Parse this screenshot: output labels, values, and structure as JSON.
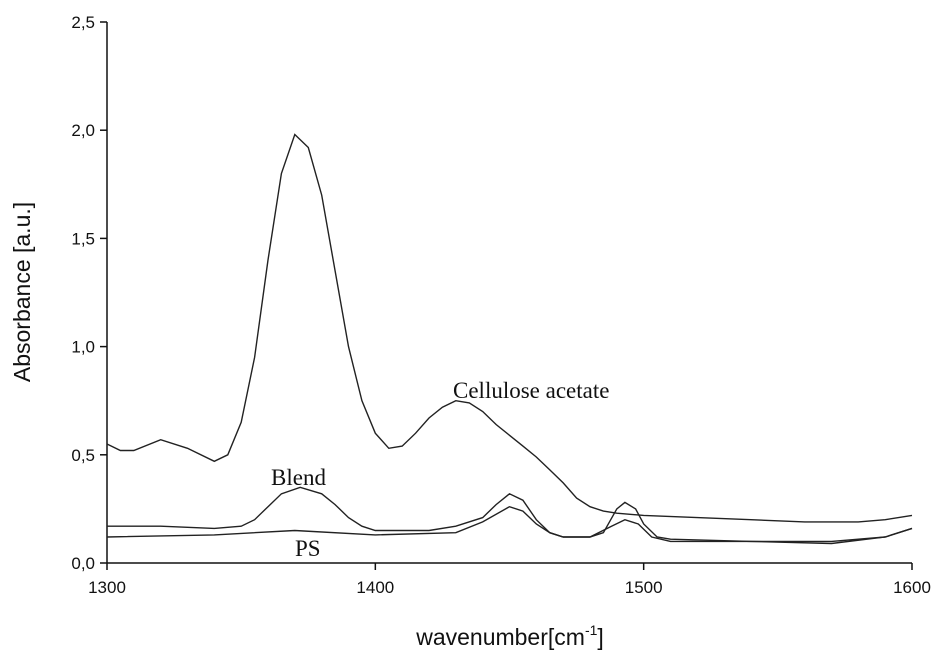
{
  "chart_data": {
    "type": "line",
    "x_label": {
      "text": "wavenumber[cm",
      "superscript": "-1",
      "suffix": "]"
    },
    "y_label": "Absorbance [a.u.]",
    "xlim": [
      1300,
      1600
    ],
    "xticks": [
      1300,
      1400,
      1500,
      1600
    ],
    "ylim": [
      0,
      2.5
    ],
    "yticks": [
      {
        "value": 0,
        "label": "0,0"
      },
      {
        "value": 0.5,
        "label": "0,5"
      },
      {
        "value": 1,
        "label": "1,0"
      },
      {
        "value": 1.5,
        "label": "1,5"
      },
      {
        "value": 2,
        "label": "2,0"
      },
      {
        "value": 2.5,
        "label": "2,5"
      }
    ],
    "series": [
      {
        "name": "Cellulose acetate",
        "color": "#222222",
        "x": [
          1300,
          1305,
          1310,
          1320,
          1330,
          1340,
          1345,
          1350,
          1355,
          1360,
          1365,
          1370,
          1375,
          1380,
          1385,
          1390,
          1395,
          1400,
          1405,
          1410,
          1415,
          1420,
          1425,
          1430,
          1435,
          1440,
          1445,
          1450,
          1455,
          1460,
          1465,
          1470,
          1475,
          1480,
          1485,
          1490,
          1500,
          1520,
          1540,
          1560,
          1580,
          1590,
          1600
        ],
        "values": [
          0.55,
          0.52,
          0.52,
          0.57,
          0.53,
          0.47,
          0.5,
          0.65,
          0.95,
          1.4,
          1.8,
          1.98,
          1.92,
          1.7,
          1.35,
          1.0,
          0.75,
          0.6,
          0.53,
          0.54,
          0.6,
          0.67,
          0.72,
          0.75,
          0.74,
          0.7,
          0.64,
          0.59,
          0.54,
          0.49,
          0.43,
          0.37,
          0.3,
          0.26,
          0.24,
          0.23,
          0.22,
          0.21,
          0.2,
          0.19,
          0.19,
          0.2,
          0.22
        ]
      },
      {
        "name": "Blend",
        "color": "#222222",
        "x": [
          1300,
          1320,
          1340,
          1350,
          1355,
          1360,
          1365,
          1372,
          1380,
          1385,
          1390,
          1395,
          1400,
          1420,
          1430,
          1440,
          1445,
          1450,
          1455,
          1460,
          1465,
          1470,
          1480,
          1485,
          1490,
          1493,
          1497,
          1500,
          1505,
          1510,
          1540,
          1570,
          1590,
          1600
        ],
        "values": [
          0.17,
          0.17,
          0.16,
          0.17,
          0.2,
          0.26,
          0.32,
          0.35,
          0.32,
          0.27,
          0.21,
          0.17,
          0.15,
          0.15,
          0.17,
          0.21,
          0.27,
          0.32,
          0.29,
          0.2,
          0.14,
          0.12,
          0.12,
          0.14,
          0.25,
          0.28,
          0.25,
          0.18,
          0.12,
          0.11,
          0.1,
          0.1,
          0.12,
          0.16
        ]
      },
      {
        "name": "PS",
        "color": "#222222",
        "x": [
          1300,
          1340,
          1370,
          1400,
          1430,
          1440,
          1450,
          1455,
          1460,
          1465,
          1470,
          1480,
          1488,
          1493,
          1498,
          1503,
          1510,
          1540,
          1570,
          1590,
          1600
        ],
        "values": [
          0.12,
          0.13,
          0.15,
          0.13,
          0.14,
          0.19,
          0.26,
          0.24,
          0.18,
          0.14,
          0.12,
          0.12,
          0.17,
          0.2,
          0.18,
          0.12,
          0.1,
          0.1,
          0.09,
          0.12,
          0.16
        ]
      }
    ]
  }
}
